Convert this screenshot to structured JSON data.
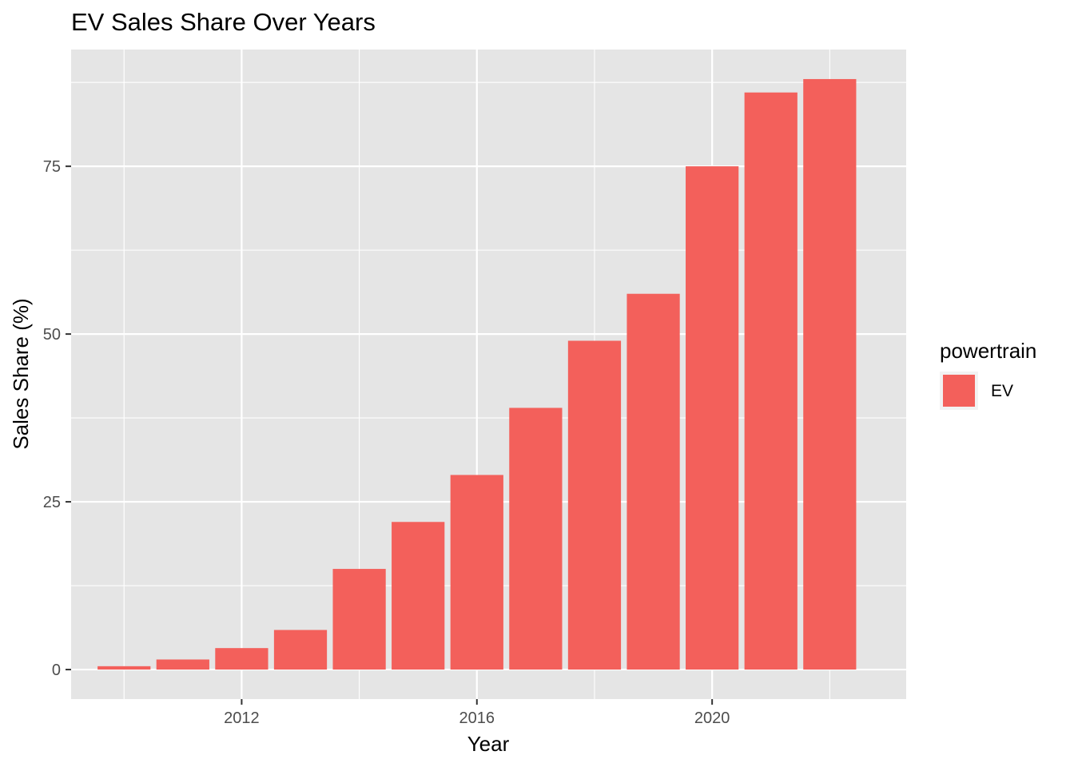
{
  "chart_data": {
    "type": "bar",
    "title": "EV Sales Share Over Years",
    "xlabel": "Year",
    "ylabel": "Sales Share (%)",
    "x": [
      2010,
      2011,
      2012,
      2013,
      2014,
      2015,
      2016,
      2017,
      2018,
      2019,
      2020,
      2021,
      2022
    ],
    "series": [
      {
        "name": "EV",
        "values": [
          0.5,
          1.5,
          3.2,
          5.9,
          15,
          22,
          29,
          39,
          49,
          56,
          75,
          86,
          88
        ]
      }
    ],
    "x_ticks": [
      2012,
      2016,
      2020
    ],
    "x_tick_labels": [
      "2012",
      "2016",
      "2020"
    ],
    "y_ticks": [
      0,
      25,
      50,
      75
    ],
    "y_tick_labels": [
      "0",
      "25",
      "50",
      "75"
    ],
    "xlim": [
      2009.1,
      2023.3
    ],
    "ylim": [
      -4.4,
      92.4
    ],
    "grid": true,
    "legend_position": "right",
    "legend_title": "powertrain",
    "colors": {
      "bar": "#f3605b",
      "panel": "#e5e5e5",
      "grid": "#ffffff",
      "axis_text": "#4d4d4d",
      "tick": "#333333"
    }
  }
}
